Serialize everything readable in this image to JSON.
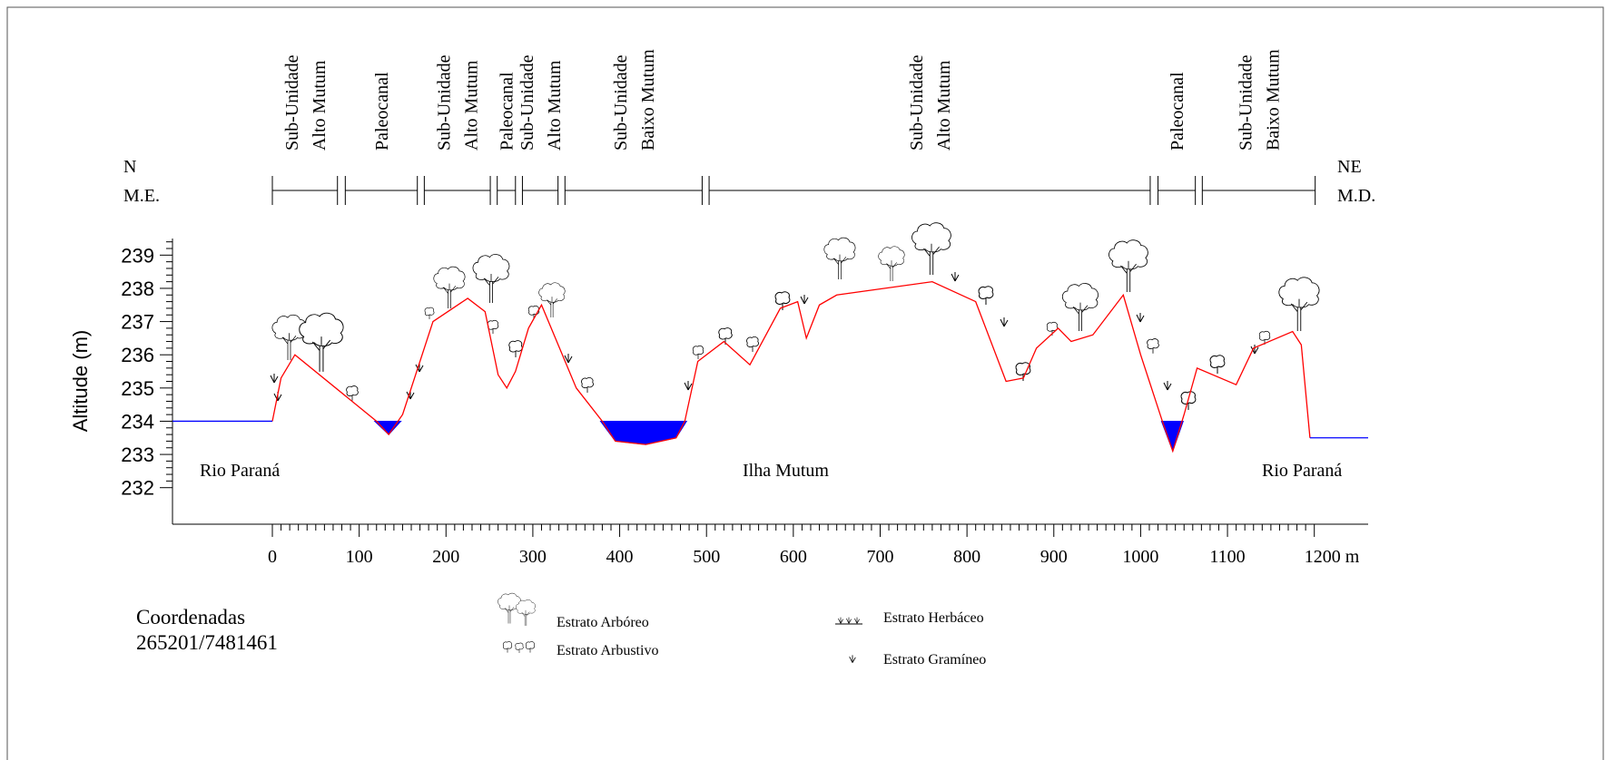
{
  "chart_data": {
    "type": "line",
    "y_label": "Altitude (m)",
    "xlim": [
      -115,
      1262
    ],
    "ylim": [
      230.9,
      239.5
    ],
    "xticks": [
      0,
      100,
      200,
      300,
      400,
      500,
      600,
      700,
      800,
      900,
      1000,
      1100,
      {
        "value": 1200,
        "label": "1200 m"
      }
    ],
    "yticks": [
      232,
      233,
      234,
      235,
      236,
      237,
      238,
      239
    ],
    "series": [
      {
        "color": "#ff0000",
        "x": [
          0,
          10,
          26,
          120,
          134,
          150,
          185,
          225,
          245,
          260,
          270,
          280,
          295,
          310,
          350,
          380,
          395,
          430,
          465,
          475,
          490,
          520,
          550,
          585,
          605,
          615,
          630,
          650,
          760,
          810,
          845,
          865,
          880,
          905,
          920,
          945,
          980,
          1000,
          1025,
          1037,
          1050,
          1065,
          1110,
          1130,
          1175,
          1185,
          1195
        ],
        "values": [
          234,
          235.3,
          236,
          234,
          233.6,
          234.2,
          237,
          237.7,
          237.3,
          235.4,
          235,
          235.5,
          236.8,
          237.5,
          235,
          234,
          233.4,
          233.3,
          233.5,
          234,
          235.8,
          236.4,
          235.7,
          237.4,
          237.6,
          236.5,
          237.5,
          237.8,
          238.2,
          237.6,
          235.2,
          235.3,
          236.2,
          236.8,
          236.4,
          236.6,
          237.8,
          236,
          234,
          233.1,
          234.2,
          235.6,
          235.1,
          236.2,
          236.7,
          236.3,
          233.5
        ]
      },
      {
        "color": "#0000ff",
        "x": [
          -115,
          0
        ],
        "values": [
          234,
          234
        ]
      },
      {
        "color": "#0000ff",
        "x": [
          1195,
          1262
        ],
        "values": [
          233.5,
          233.5
        ]
      }
    ],
    "water_areas": [
      {
        "color": "#0000ff",
        "x": [
          118,
          134,
          148
        ],
        "values": [
          234,
          233.6,
          234
        ]
      },
      {
        "color": "#0000ff",
        "x": [
          378,
          395,
          430,
          465,
          477
        ],
        "values": [
          234,
          233.4,
          233.3,
          233.5,
          234
        ]
      },
      {
        "color": "#0000ff",
        "x": [
          1024,
          1037,
          1049
        ],
        "values": [
          234,
          233.1,
          234
        ]
      }
    ],
    "units": [
      {
        "lines": [
          "Sub-Unidade",
          "Alto Mutum"
        ],
        "start": 0,
        "end": 75
      },
      {
        "lines": [
          "Paleocanal"
        ],
        "start": 84,
        "end": 167
      },
      {
        "lines": [
          "Sub-Unidade",
          "Alto Mutum"
        ],
        "start": 175,
        "end": 251
      },
      {
        "lines": [
          "Paleocanal"
        ],
        "start": 259,
        "end": 280
      },
      {
        "lines": [
          "Sub-Unidade",
          "Alto Mutum"
        ],
        "start": 288,
        "end": 329
      },
      {
        "lines": [
          "Sub-Unidade",
          "Baixo Mutum"
        ],
        "start": 337,
        "end": 495
      },
      {
        "lines": [
          "Sub-Unidade",
          "Alto Mutum"
        ],
        "start": 503,
        "end": 1011
      },
      {
        "lines": [
          "Paleocanal"
        ],
        "start": 1020,
        "end": 1063
      },
      {
        "lines": [
          "Sub-Unidade",
          "Baixo Mutum"
        ],
        "start": 1071,
        "end": 1201
      }
    ],
    "left_direction": [
      "N",
      "M.E."
    ],
    "right_direction": [
      "NE",
      "M.D."
    ],
    "annotations": [
      "Rio Paraná",
      "Ilha Mutum",
      "Rio Paraná"
    ],
    "coordinates": [
      "Coordenadas",
      "265201/7481461"
    ],
    "legend": [
      "Estrato Arbóreo",
      "Estrato Arbustivo",
      "Estrato Herbáceo",
      "Estrato Gramíneo"
    ]
  }
}
